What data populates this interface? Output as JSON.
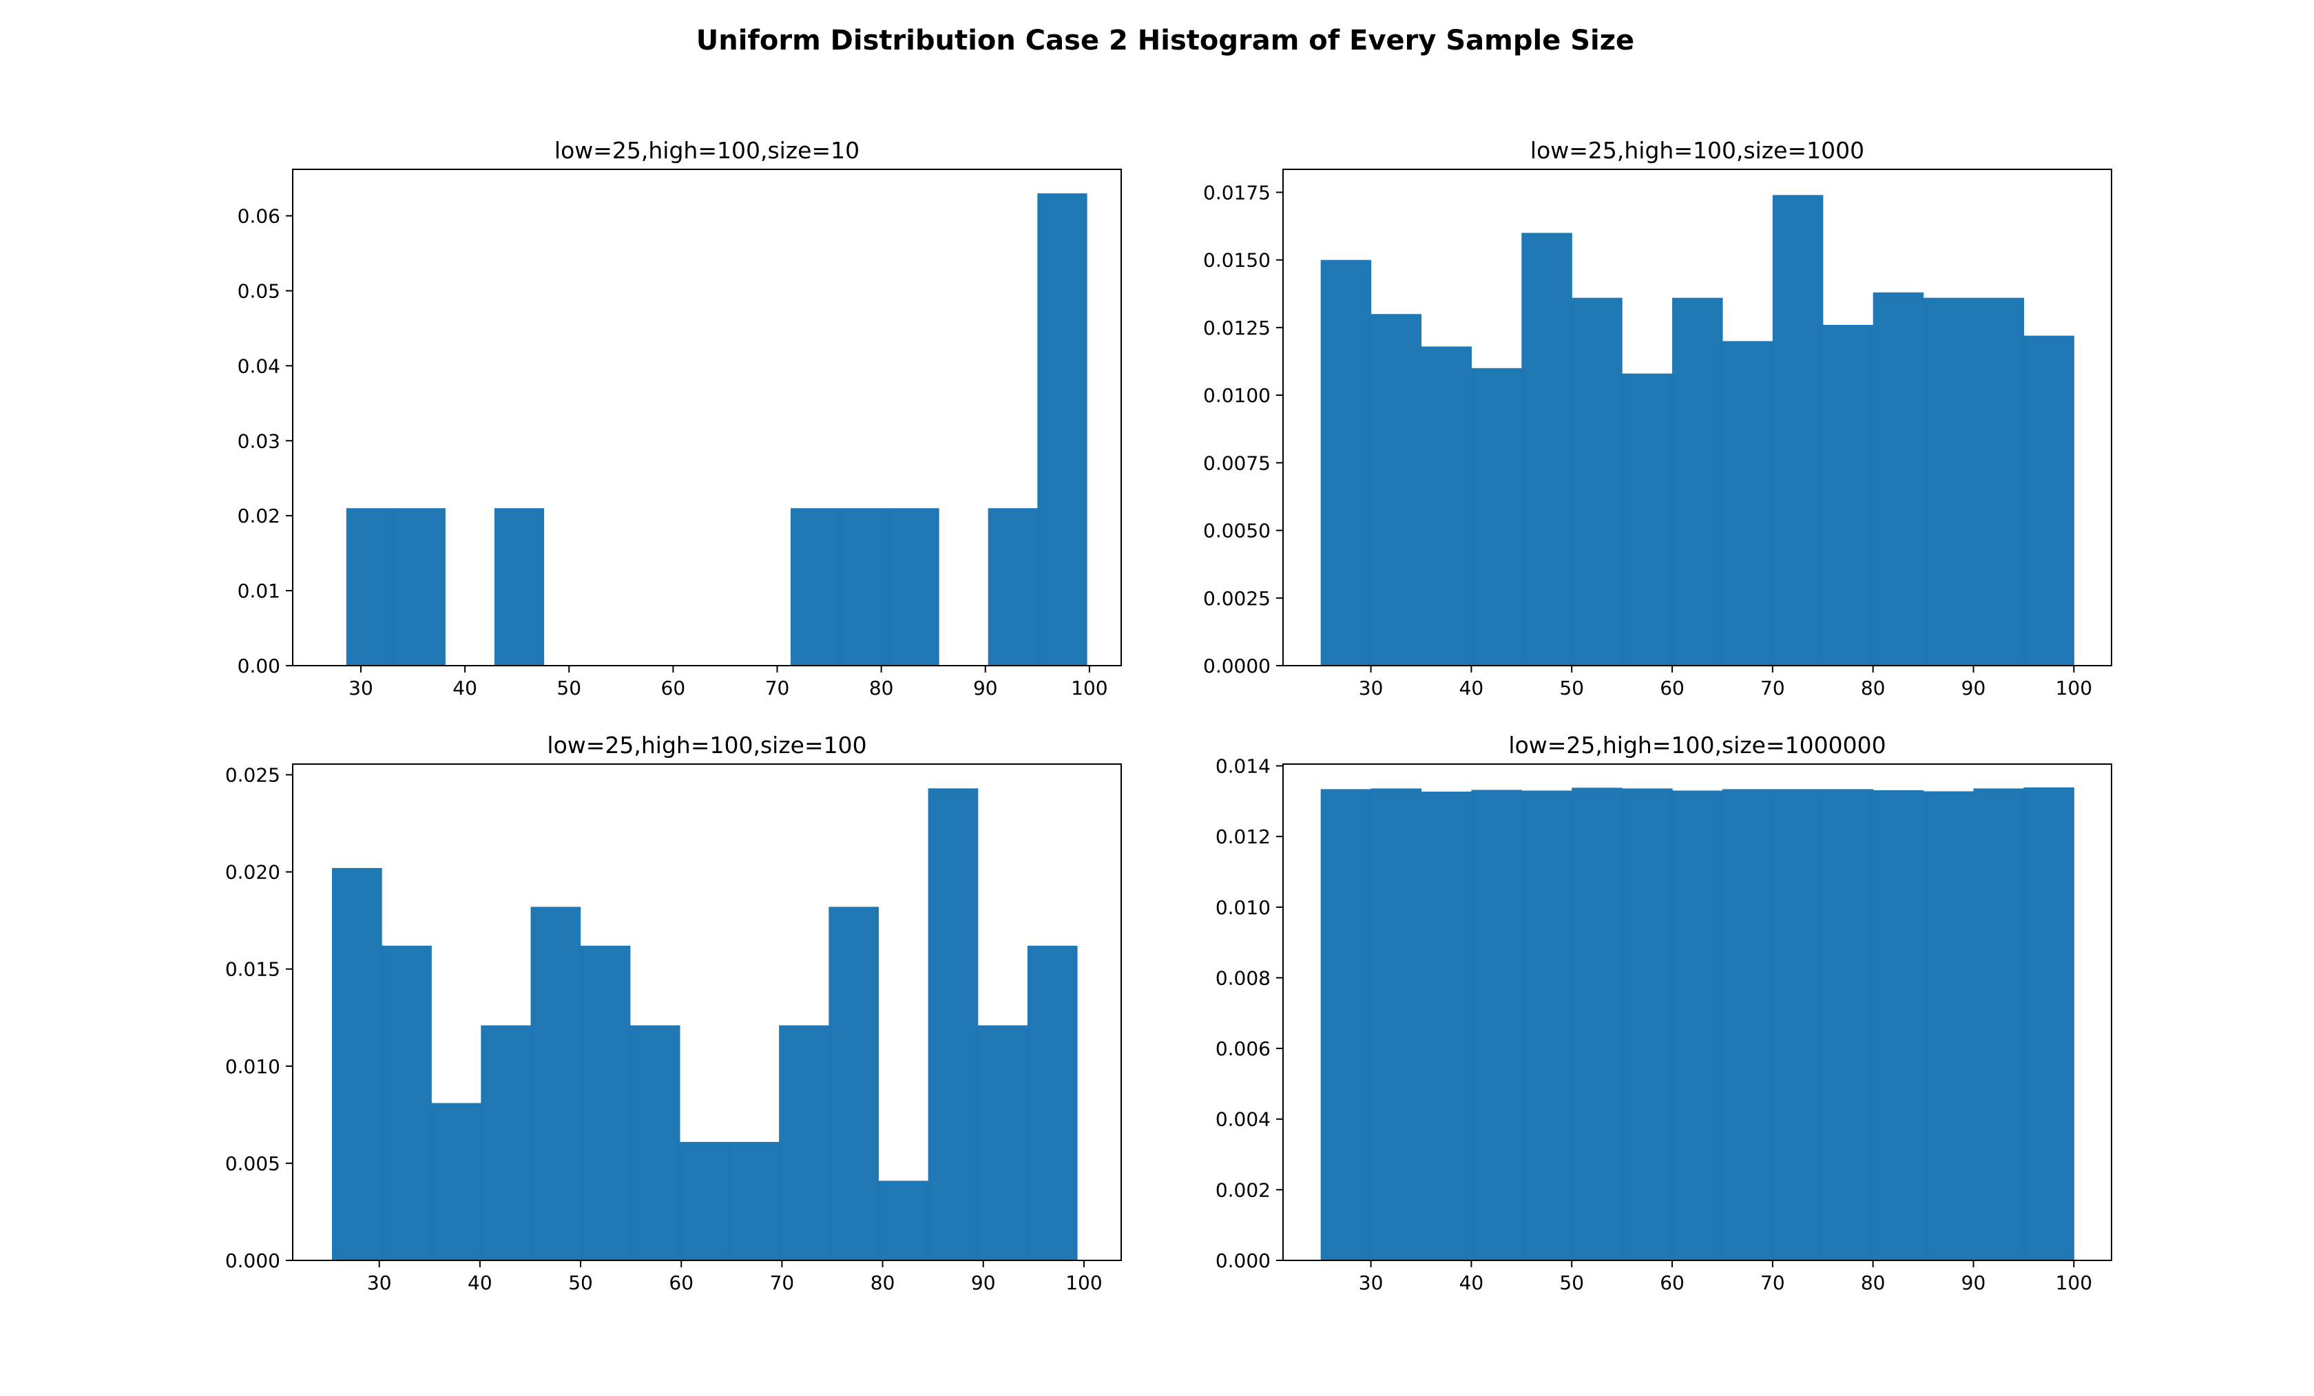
{
  "figure": {
    "suptitle": "Uniform Distribution Case 2 Histogram of Every Sample Size"
  },
  "chart_data": [
    {
      "type": "bar",
      "title": "low=25,high=100,size=10",
      "xlim": [
        23.45,
        103.05
      ],
      "ylim": [
        0,
        0.0662
      ],
      "xticks": [
        30,
        40,
        50,
        60,
        70,
        80,
        90,
        100
      ],
      "yticks": [
        0.0,
        0.01,
        0.02,
        0.03,
        0.04,
        0.05,
        0.06
      ],
      "ytick_labels": [
        "0.00",
        "0.01",
        "0.02",
        "0.03",
        "0.04",
        "0.05",
        "0.06"
      ],
      "bin_edges": [
        28.6,
        33.34,
        38.09,
        42.83,
        47.57,
        52.32,
        57.06,
        61.8,
        66.54,
        71.29,
        76.03,
        80.77,
        85.52,
        90.26,
        95.0,
        99.74
      ],
      "values": [
        0.021,
        0.021,
        0.0,
        0.021,
        0.0,
        0.0,
        0.0,
        0.0,
        0.0,
        0.021,
        0.021,
        0.021,
        0.0,
        0.021,
        0.063
      ],
      "color": "#1f77b4"
    },
    {
      "type": "bar",
      "title": "low=25,high=100,size=1000",
      "xlim": [
        21.25,
        103.75
      ],
      "ylim": [
        0,
        0.01835
      ],
      "xticks": [
        30,
        40,
        50,
        60,
        70,
        80,
        90,
        100
      ],
      "yticks": [
        0.0,
        0.0025,
        0.005,
        0.0075,
        0.01,
        0.0125,
        0.015,
        0.0175
      ],
      "ytick_labels": [
        "0.0000",
        "0.0025",
        "0.0050",
        "0.0075",
        "0.0100",
        "0.0125",
        "0.0150",
        "0.0175"
      ],
      "bin_edges": [
        25,
        30,
        35,
        40,
        45,
        50,
        55,
        60,
        65,
        70,
        75,
        80,
        85,
        90,
        95,
        100
      ],
      "values": [
        0.015,
        0.013,
        0.0118,
        0.011,
        0.016,
        0.0136,
        0.0108,
        0.0136,
        0.012,
        0.0174,
        0.0126,
        0.0138,
        0.0136,
        0.0136,
        0.0122
      ],
      "color": "#1f77b4"
    },
    {
      "type": "bar",
      "title": "low=25,high=100,size=100",
      "xlim": [
        21.4,
        103.7
      ],
      "ylim": [
        0,
        0.02555
      ],
      "xticks": [
        30,
        40,
        50,
        60,
        70,
        80,
        90,
        100
      ],
      "yticks": [
        0.0,
        0.005,
        0.01,
        0.015,
        0.02,
        0.025
      ],
      "ytick_labels": [
        "0.000",
        "0.005",
        "0.010",
        "0.015",
        "0.020",
        "0.025"
      ],
      "bin_edges": [
        25.3,
        30.23,
        35.17,
        40.1,
        45.04,
        49.97,
        54.91,
        59.84,
        64.78,
        69.71,
        74.65,
        79.58,
        84.52,
        89.45,
        94.39,
        99.32
      ],
      "values": [
        0.0202,
        0.0162,
        0.0081,
        0.0121,
        0.0182,
        0.0162,
        0.0121,
        0.0061,
        0.0061,
        0.0121,
        0.0182,
        0.0041,
        0.0243,
        0.0121,
        0.0162
      ],
      "color": "#1f77b4"
    },
    {
      "type": "bar",
      "title": "low=25,high=100,size=1000000",
      "xlim": [
        21.25,
        103.75
      ],
      "ylim": [
        0,
        0.01405
      ],
      "xticks": [
        30,
        40,
        50,
        60,
        70,
        80,
        90,
        100
      ],
      "yticks": [
        0.0,
        0.002,
        0.004,
        0.006,
        0.008,
        0.01,
        0.012,
        0.014
      ],
      "ytick_labels": [
        "0.000",
        "0.002",
        "0.004",
        "0.006",
        "0.008",
        "0.010",
        "0.012",
        "0.014"
      ],
      "bin_edges": [
        25,
        30,
        35,
        40,
        45,
        50,
        55,
        60,
        65,
        70,
        75,
        80,
        85,
        90,
        95,
        100
      ],
      "values": [
        0.01334,
        0.01336,
        0.01327,
        0.01332,
        0.0133,
        0.01338,
        0.01336,
        0.0133,
        0.01334,
        0.01334,
        0.01334,
        0.01331,
        0.01328,
        0.01336,
        0.01339
      ],
      "color": "#1f77b4"
    }
  ]
}
